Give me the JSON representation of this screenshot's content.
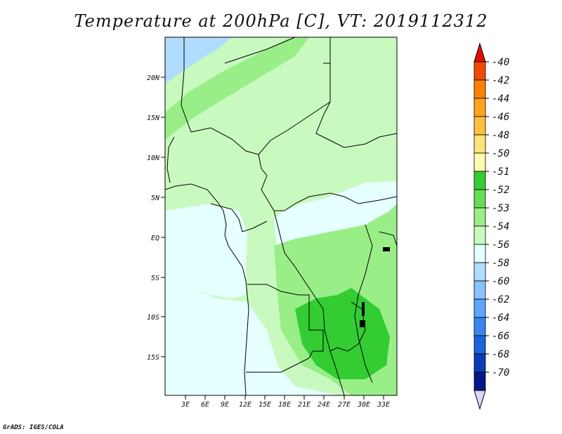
{
  "title": "Temperature at 200hPa [C], VT: 2019112312",
  "credit": "GrADS: IGES/COLA",
  "lat_labels": [
    "20N",
    "15N",
    "10N",
    "5N",
    "EQ",
    "5S",
    "10S",
    "15S"
  ],
  "lon_labels": [
    "3E",
    "6E",
    "9E",
    "12E",
    "15E",
    "18E",
    "21E",
    "24E",
    "27E",
    "30E",
    "33E"
  ],
  "colorbar": {
    "labels": [
      "-40",
      "-42",
      "-44",
      "-46",
      "-48",
      "-50",
      "-51",
      "-52",
      "-53",
      "-54",
      "-56",
      "-58",
      "-60",
      "-62",
      "-64",
      "-66",
      "-68",
      "-70"
    ],
    "colors": [
      "#dd1a00",
      "#ee4a00",
      "#ff7f00",
      "#ffa31f",
      "#ffc040",
      "#ffe27a",
      "#fffab0",
      "#33cc33",
      "#66dd55",
      "#99ee88",
      "#c8fac0",
      "#e6ffff",
      "#b0ddff",
      "#88c2ff",
      "#5ea6ff",
      "#3a86f0",
      "#1a64dc",
      "#0a3cb4",
      "#05178a"
    ],
    "top_arrow_color": "#e01000",
    "bottom_arrow_color": "#d8d8f8"
  },
  "map_colors": {
    "sea_light": "#e6ffff",
    "green_light": "#c8fac0",
    "green_mid": "#99ee88",
    "green_dark": "#33cc33",
    "blue_light": "#b0ddff",
    "border": "#000000"
  }
}
